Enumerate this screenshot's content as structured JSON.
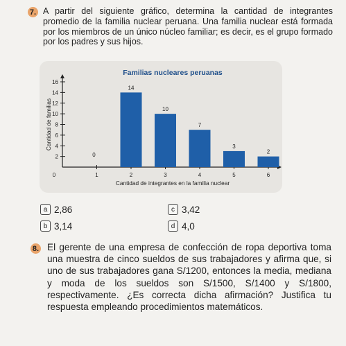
{
  "q7": {
    "number": "7.",
    "text": "A partir del siguiente gráfico, determina la cantidad de integrantes promedio de la familia nuclear peruana. Una familia nuclear está formada por los miembros de un único núcleo familiar; es decir, es el grupo formado por los padres y sus hijos."
  },
  "chart_data": {
    "type": "bar",
    "title": "Familias nucleares peruanas",
    "xlabel": "Cantidad de integrantes en la familia nuclear",
    "ylabel": "Cantidad de familias",
    "categories": [
      "1",
      "2",
      "3",
      "4",
      "5",
      "6"
    ],
    "values": [
      0,
      14,
      10,
      7,
      3,
      2
    ],
    "value_labels": [
      "0",
      "14",
      "10",
      "7",
      "3",
      "2"
    ],
    "x_ticks": [
      "0",
      "1",
      "2",
      "3",
      "4",
      "5",
      "6"
    ],
    "y_ticks": [
      "2",
      "4",
      "6",
      "8",
      "10",
      "12",
      "14",
      "16"
    ],
    "ylim": [
      0,
      16
    ],
    "grid": false,
    "bar_color": "#1f5fa8"
  },
  "options": {
    "a": {
      "letter": "a",
      "value": "2,86"
    },
    "b": {
      "letter": "b",
      "value": "3,14"
    },
    "c": {
      "letter": "c",
      "value": "3,42"
    },
    "d": {
      "letter": "d",
      "value": "4,0"
    }
  },
  "q8": {
    "number": "8.",
    "text": "El gerente de una empresa de confección de ropa deportiva toma una muestra de cinco sueldos de sus trabajadores y afirma que, si uno de sus trabajadores gana S/1200, entonces la media, mediana y moda de los sueldos son S/1500, S/1400 y S/1800, respectivamente. ¿Es correcta dicha afirmación? Justifica tu respuesta empleando procedimientos matemáticos."
  }
}
